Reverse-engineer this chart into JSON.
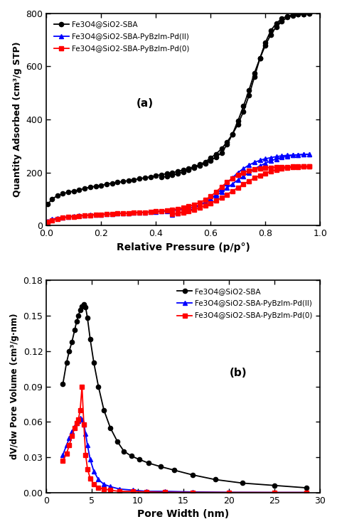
{
  "plot_a": {
    "title_label": "(a)",
    "xlabel": "Relative Pressure (p/p°)",
    "ylabel": "Quantity Adsorbed (cm³/g STP)",
    "xlim": [
      0,
      1.0
    ],
    "ylim": [
      0,
      800
    ],
    "yticks": [
      0,
      200,
      400,
      600,
      800
    ],
    "xticks": [
      0.0,
      0.2,
      0.4,
      0.6,
      0.8,
      1.0
    ],
    "series": {
      "black": {
        "label": "Fe3O4@SiO2-SBA",
        "color": "#000000",
        "marker": "o",
        "adsorption_x": [
          0.005,
          0.02,
          0.04,
          0.06,
          0.08,
          0.1,
          0.12,
          0.14,
          0.16,
          0.18,
          0.2,
          0.22,
          0.24,
          0.26,
          0.28,
          0.3,
          0.32,
          0.34,
          0.36,
          0.38,
          0.4,
          0.42,
          0.44,
          0.46,
          0.48,
          0.5,
          0.52,
          0.54,
          0.56,
          0.58,
          0.6,
          0.62,
          0.64,
          0.66,
          0.68,
          0.7,
          0.72,
          0.74,
          0.76,
          0.78,
          0.8,
          0.82,
          0.84,
          0.86,
          0.88,
          0.9,
          0.92,
          0.94,
          0.96
        ],
        "adsorption_y": [
          80,
          100,
          112,
          120,
          126,
          130,
          135,
          140,
          145,
          148,
          152,
          156,
          160,
          163,
          166,
          170,
          173,
          177,
          180,
          184,
          188,
          192,
          196,
          200,
          204,
          210,
          216,
          222,
          230,
          240,
          255,
          270,
          290,
          315,
          345,
          382,
          430,
          490,
          560,
          630,
          690,
          735,
          763,
          780,
          790,
          795,
          797,
          798,
          799
        ],
        "desorption_x": [
          0.96,
          0.94,
          0.92,
          0.9,
          0.88,
          0.86,
          0.84,
          0.82,
          0.8,
          0.78,
          0.76,
          0.74,
          0.72,
          0.7,
          0.68,
          0.66,
          0.64,
          0.62,
          0.6,
          0.58,
          0.56,
          0.54,
          0.52,
          0.5,
          0.48,
          0.46,
          0.44,
          0.42
        ],
        "desorption_y": [
          799,
          798,
          797,
          792,
          785,
          770,
          750,
          720,
          680,
          630,
          575,
          510,
          450,
          395,
          345,
          305,
          275,
          258,
          245,
          235,
          226,
          218,
          210,
          202,
          196,
          190,
          185,
          182
        ]
      },
      "blue": {
        "label": "Fe3O4@SiO2-SBA-PyBzIm-Pd(II)",
        "color": "#0000FF",
        "marker": "^",
        "adsorption_x": [
          0.005,
          0.02,
          0.04,
          0.06,
          0.08,
          0.1,
          0.12,
          0.14,
          0.16,
          0.18,
          0.2,
          0.22,
          0.24,
          0.26,
          0.28,
          0.3,
          0.32,
          0.34,
          0.36,
          0.38,
          0.4,
          0.42,
          0.44,
          0.46,
          0.48,
          0.5,
          0.52,
          0.54,
          0.56,
          0.58,
          0.6,
          0.62,
          0.64,
          0.66,
          0.68,
          0.7,
          0.72,
          0.74,
          0.76,
          0.78,
          0.8,
          0.82,
          0.84,
          0.86,
          0.88,
          0.9,
          0.92,
          0.94,
          0.96
        ],
        "adsorption_y": [
          18,
          24,
          28,
          31,
          33,
          35,
          37,
          38,
          40,
          41,
          42,
          43,
          44,
          45,
          46,
          47,
          48,
          49,
          50,
          51,
          52,
          53,
          55,
          57,
          59,
          62,
          66,
          71,
          78,
          88,
          100,
          118,
          138,
          160,
          180,
          200,
          215,
          228,
          238,
          246,
          252,
          256,
          260,
          263,
          265,
          266,
          267,
          268,
          269
        ],
        "desorption_x": [
          0.96,
          0.94,
          0.92,
          0.9,
          0.88,
          0.86,
          0.84,
          0.82,
          0.8,
          0.78,
          0.76,
          0.74,
          0.72,
          0.7,
          0.68,
          0.66,
          0.64,
          0.62,
          0.6,
          0.58,
          0.56,
          0.54,
          0.52,
          0.5,
          0.48,
          0.46
        ],
        "desorption_y": [
          269,
          268,
          267,
          265,
          262,
          257,
          251,
          244,
          235,
          225,
          213,
          200,
          186,
          172,
          157,
          142,
          127,
          113,
          100,
          88,
          76,
          65,
          57,
          51,
          46,
          42
        ]
      },
      "red": {
        "label": "Fe3O4@SiO2-SBA-PyBzIm-Pd(0)",
        "color": "#FF0000",
        "marker": "s",
        "adsorption_x": [
          0.005,
          0.02,
          0.04,
          0.06,
          0.08,
          0.1,
          0.12,
          0.14,
          0.16,
          0.18,
          0.2,
          0.22,
          0.24,
          0.26,
          0.28,
          0.3,
          0.32,
          0.34,
          0.36,
          0.38,
          0.4,
          0.42,
          0.44,
          0.46,
          0.48,
          0.5,
          0.52,
          0.54,
          0.56,
          0.58,
          0.6,
          0.62,
          0.64,
          0.66,
          0.68,
          0.7,
          0.72,
          0.74,
          0.76,
          0.78,
          0.8,
          0.82,
          0.84,
          0.86,
          0.88,
          0.9,
          0.92,
          0.94,
          0.96
        ],
        "adsorption_y": [
          15,
          20,
          25,
          29,
          32,
          34,
          36,
          38,
          39,
          40,
          42,
          43,
          44,
          45,
          46,
          47,
          48,
          49,
          50,
          51,
          53,
          55,
          57,
          60,
          63,
          67,
          72,
          79,
          87,
          97,
          110,
          127,
          146,
          164,
          178,
          190,
          200,
          207,
          212,
          215,
          217,
          219,
          220,
          221,
          221,
          222,
          222,
          222,
          222
        ],
        "desorption_x": [
          0.96,
          0.94,
          0.92,
          0.9,
          0.88,
          0.86,
          0.84,
          0.82,
          0.8,
          0.78,
          0.76,
          0.74,
          0.72,
          0.7,
          0.68,
          0.66,
          0.64,
          0.62,
          0.6,
          0.58,
          0.56,
          0.54,
          0.52,
          0.5,
          0.48,
          0.46
        ],
        "desorption_y": [
          222,
          222,
          221,
          220,
          218,
          215,
          210,
          204,
          197,
          189,
          179,
          168,
          156,
          143,
          130,
          117,
          105,
          94,
          84,
          75,
          67,
          60,
          54,
          50,
          46,
          43
        ]
      }
    }
  },
  "plot_b": {
    "title_label": "(b)",
    "xlabel": "Pore Width (nm)",
    "ylabel": "dV/dw Pore Volume (cm³/g·nm)",
    "xlim": [
      0,
      30
    ],
    "ylim": [
      0,
      0.18
    ],
    "yticks": [
      0.0,
      0.03,
      0.06,
      0.09,
      0.12,
      0.15,
      0.18
    ],
    "xticks": [
      0,
      5,
      10,
      15,
      20,
      25,
      30
    ],
    "series": {
      "black": {
        "label": "Fe3O4@SiO2-SBA",
        "color": "#000000",
        "marker": "o",
        "x": [
          1.8,
          2.2,
          2.5,
          2.8,
          3.1,
          3.3,
          3.5,
          3.7,
          3.9,
          4.1,
          4.3,
          4.5,
          4.8,
          5.2,
          5.7,
          6.3,
          7.0,
          7.8,
          8.5,
          9.3,
          10.2,
          11.2,
          12.5,
          14.0,
          16.0,
          18.5,
          21.5,
          25.0,
          28.5
        ],
        "y": [
          0.092,
          0.11,
          0.12,
          0.128,
          0.138,
          0.145,
          0.15,
          0.155,
          0.158,
          0.16,
          0.157,
          0.148,
          0.13,
          0.11,
          0.09,
          0.07,
          0.055,
          0.043,
          0.035,
          0.031,
          0.028,
          0.025,
          0.022,
          0.019,
          0.015,
          0.011,
          0.008,
          0.006,
          0.004
        ]
      },
      "blue": {
        "label": "Fe3O4@SiO2-SBA-PyBzIm-Pd(II)",
        "color": "#0000FF",
        "marker": "^",
        "x": [
          1.8,
          2.2,
          2.5,
          2.8,
          3.1,
          3.3,
          3.5,
          3.7,
          3.9,
          4.1,
          4.3,
          4.5,
          4.8,
          5.2,
          5.7,
          6.3,
          7.0,
          8.0,
          9.5,
          11.0,
          13.0,
          16.0,
          20.0,
          25.0,
          28.5
        ],
        "y": [
          0.032,
          0.04,
          0.046,
          0.052,
          0.056,
          0.059,
          0.061,
          0.063,
          0.062,
          0.058,
          0.05,
          0.04,
          0.028,
          0.018,
          0.011,
          0.007,
          0.005,
          0.003,
          0.002,
          0.001,
          0.001,
          0.0005,
          0.0002,
          0.0001,
          0.0001
        ]
      },
      "red": {
        "label": "Fe3O4@SiO2-SBA-PyBzIm-Pd(0)",
        "color": "#FF0000",
        "marker": "s",
        "x": [
          1.8,
          2.2,
          2.5,
          2.8,
          3.1,
          3.3,
          3.5,
          3.7,
          3.9,
          4.1,
          4.3,
          4.5,
          4.8,
          5.2,
          5.7,
          6.3,
          7.0,
          8.0,
          9.5,
          11.0,
          13.0,
          16.0,
          20.0,
          25.0,
          28.5
        ],
        "y": [
          0.027,
          0.033,
          0.04,
          0.048,
          0.055,
          0.059,
          0.062,
          0.07,
          0.09,
          0.058,
          0.032,
          0.02,
          0.012,
          0.007,
          0.004,
          0.003,
          0.002,
          0.001,
          0.001,
          0.0005,
          0.0002,
          0.0001,
          5e-05,
          2e-05,
          1e-05
        ]
      }
    }
  }
}
